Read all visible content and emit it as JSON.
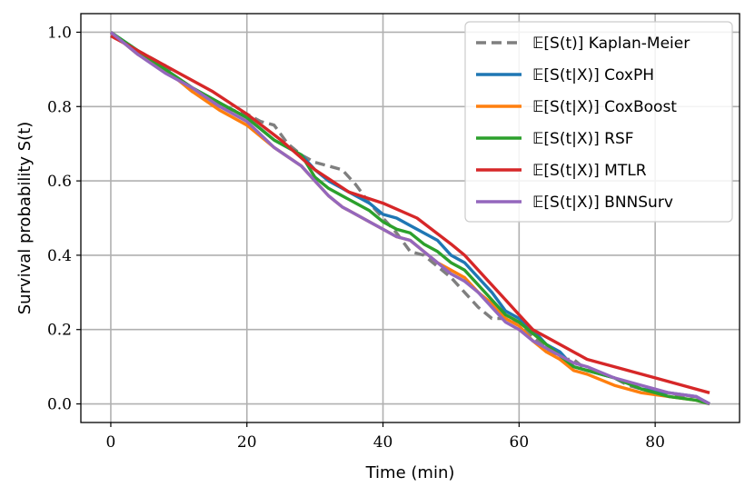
{
  "chart_data": {
    "type": "line",
    "title": "",
    "xlabel": "Time (min)",
    "ylabel": "Survival probability S(t)",
    "xlim": [
      -4.4,
      92.4
    ],
    "ylim": [
      -0.05,
      1.05
    ],
    "xticks": [
      0,
      20,
      40,
      60,
      80
    ],
    "yticks": [
      0.0,
      0.2,
      0.4,
      0.6,
      0.8,
      1.0
    ],
    "xtick_labels": [
      "0",
      "20",
      "40",
      "60",
      "80"
    ],
    "ytick_labels": [
      "0.0",
      "0.2",
      "0.4",
      "0.6",
      "0.8",
      "1.0"
    ],
    "grid": true,
    "legend_position": "top-right",
    "series": [
      {
        "name": "𝔼[S(t)] Kaplan-Meier",
        "color": "#7f7f7f",
        "dashed": true,
        "x": [
          0,
          2,
          4,
          6,
          8,
          10,
          12,
          14,
          16,
          18,
          20,
          22,
          24,
          26,
          28,
          30,
          32,
          34,
          36,
          38,
          40,
          42,
          44,
          46,
          48,
          50,
          52,
          54,
          56,
          58,
          60,
          62,
          64,
          66,
          68,
          70,
          72,
          74,
          76,
          78,
          80,
          82,
          84,
          86,
          88
        ],
        "y": [
          1.0,
          0.97,
          0.95,
          0.93,
          0.91,
          0.87,
          0.84,
          0.82,
          0.8,
          0.79,
          0.78,
          0.76,
          0.75,
          0.7,
          0.67,
          0.65,
          0.64,
          0.63,
          0.59,
          0.54,
          0.5,
          0.46,
          0.41,
          0.4,
          0.37,
          0.34,
          0.3,
          0.26,
          0.23,
          0.23,
          0.22,
          0.18,
          0.15,
          0.12,
          0.12,
          0.09,
          0.08,
          0.07,
          0.05,
          0.04,
          0.03,
          0.03,
          0.02,
          0.02,
          0.0
        ]
      },
      {
        "name": "𝔼[S(t|X)] CoxPH",
        "color": "#1f77b4",
        "dashed": false,
        "x": [
          0,
          4,
          8,
          12,
          16,
          20,
          24,
          28,
          30,
          32,
          34,
          36,
          38,
          40,
          42,
          44,
          46,
          48,
          50,
          52,
          54,
          56,
          58,
          60,
          62,
          64,
          66,
          68,
          70,
          74,
          78,
          82,
          86,
          88
        ],
        "y": [
          1.0,
          0.95,
          0.9,
          0.85,
          0.81,
          0.77,
          0.71,
          0.67,
          0.63,
          0.6,
          0.58,
          0.56,
          0.54,
          0.51,
          0.5,
          0.48,
          0.46,
          0.44,
          0.4,
          0.38,
          0.34,
          0.3,
          0.25,
          0.23,
          0.2,
          0.16,
          0.14,
          0.1,
          0.09,
          0.07,
          0.04,
          0.03,
          0.02,
          0.0
        ]
      },
      {
        "name": "𝔼[S(t|X)] CoxBoost",
        "color": "#ff7f0e",
        "dashed": false,
        "x": [
          0,
          4,
          8,
          12,
          16,
          20,
          24,
          28,
          30,
          32,
          34,
          36,
          38,
          40,
          42,
          44,
          46,
          48,
          50,
          52,
          54,
          56,
          58,
          60,
          62,
          64,
          66,
          68,
          70,
          74,
          78,
          82,
          86,
          88
        ],
        "y": [
          1.0,
          0.94,
          0.9,
          0.84,
          0.79,
          0.75,
          0.69,
          0.64,
          0.6,
          0.56,
          0.53,
          0.51,
          0.49,
          0.47,
          0.45,
          0.44,
          0.41,
          0.38,
          0.36,
          0.34,
          0.3,
          0.27,
          0.23,
          0.21,
          0.17,
          0.14,
          0.12,
          0.09,
          0.08,
          0.05,
          0.03,
          0.02,
          0.01,
          0.0
        ]
      },
      {
        "name": "𝔼[S(t|X)] RSF",
        "color": "#2ca02c",
        "dashed": false,
        "x": [
          0,
          4,
          8,
          12,
          16,
          20,
          24,
          28,
          30,
          32,
          34,
          36,
          38,
          40,
          42,
          44,
          46,
          48,
          50,
          52,
          54,
          56,
          58,
          60,
          62,
          64,
          66,
          68,
          70,
          74,
          78,
          82,
          86,
          88
        ],
        "y": [
          1.0,
          0.95,
          0.9,
          0.85,
          0.81,
          0.77,
          0.71,
          0.67,
          0.61,
          0.58,
          0.56,
          0.54,
          0.52,
          0.49,
          0.47,
          0.46,
          0.43,
          0.41,
          0.38,
          0.36,
          0.32,
          0.28,
          0.24,
          0.22,
          0.19,
          0.16,
          0.13,
          0.1,
          0.09,
          0.07,
          0.04,
          0.02,
          0.01,
          0.0
        ]
      },
      {
        "name": "𝔼[S(t|X)] MTLR",
        "color": "#d62728",
        "dashed": false,
        "x": [
          0,
          5,
          10,
          15,
          20,
          25,
          30,
          35,
          40,
          45,
          50,
          52,
          55,
          58,
          60,
          62,
          65,
          70,
          80,
          88
        ],
        "y": [
          0.99,
          0.94,
          0.89,
          0.84,
          0.78,
          0.71,
          0.63,
          0.57,
          0.54,
          0.5,
          0.43,
          0.4,
          0.34,
          0.28,
          0.24,
          0.2,
          0.17,
          0.12,
          0.07,
          0.03
        ]
      },
      {
        "name": "𝔼[S(t|X)] BNNSurv",
        "color": "#9467bd",
        "dashed": false,
        "x": [
          0,
          4,
          8,
          12,
          16,
          20,
          24,
          28,
          30,
          32,
          34,
          36,
          38,
          40,
          42,
          44,
          46,
          48,
          50,
          52,
          54,
          56,
          58,
          60,
          62,
          64,
          66,
          68,
          70,
          74,
          78,
          82,
          86,
          88
        ],
        "y": [
          1.0,
          0.94,
          0.89,
          0.85,
          0.8,
          0.76,
          0.69,
          0.64,
          0.6,
          0.56,
          0.53,
          0.51,
          0.49,
          0.47,
          0.45,
          0.44,
          0.41,
          0.38,
          0.35,
          0.33,
          0.3,
          0.26,
          0.22,
          0.2,
          0.17,
          0.15,
          0.13,
          0.11,
          0.1,
          0.07,
          0.05,
          0.03,
          0.02,
          0.0
        ]
      }
    ]
  }
}
